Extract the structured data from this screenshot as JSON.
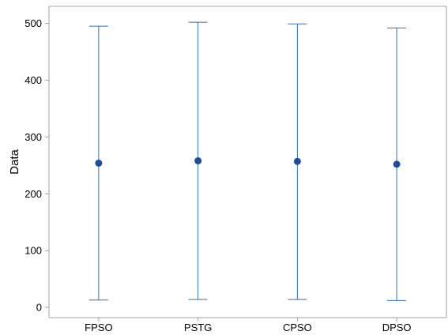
{
  "chart_data": {
    "type": "interval",
    "categories": [
      "FPSO",
      "PSTG",
      "CPSO",
      "DPSO"
    ],
    "mean": [
      254,
      258,
      257,
      252
    ],
    "lower": [
      13,
      14,
      14,
      12
    ],
    "upper": [
      495,
      502,
      499,
      492
    ],
    "xlabel": "",
    "ylabel": "Data",
    "ylim": [
      -18,
      530
    ],
    "yticks": [
      0,
      100,
      200,
      300,
      400,
      500
    ],
    "grid": false,
    "colors": {
      "interval": "#3a6ea5",
      "point": "#1f4e96",
      "frame": "#a0a0a0"
    }
  }
}
